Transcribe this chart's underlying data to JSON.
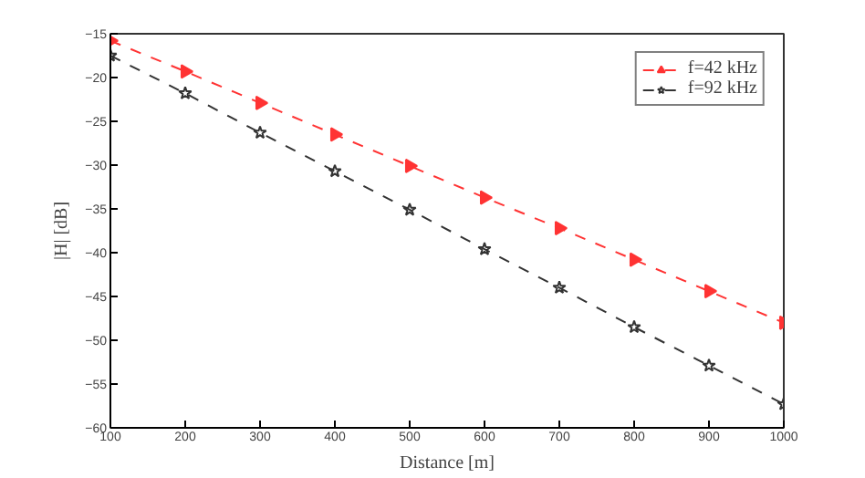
{
  "chart_data": {
    "type": "line",
    "xlabel": "Distance [m]",
    "ylabel": "|H| [dB]",
    "x": [
      100,
      200,
      300,
      400,
      500,
      600,
      700,
      800,
      900,
      1000
    ],
    "series": [
      {
        "name": "f=42 kHz",
        "color": "#ff3333",
        "marker": "triangle",
        "values": [
          -15.8,
          -19.3,
          -22.9,
          -26.5,
          -30.1,
          -33.7,
          -37.2,
          -40.8,
          -44.4,
          -48.0
        ]
      },
      {
        "name": "f=92 kHz",
        "color": "#333333",
        "marker": "star",
        "values": [
          -17.5,
          -21.8,
          -26.3,
          -30.7,
          -35.1,
          -39.6,
          -44.0,
          -48.5,
          -52.9,
          -57.3
        ]
      }
    ],
    "xlim": [
      100,
      1000
    ],
    "ylim": [
      -60,
      -15
    ],
    "xticks": [
      100,
      200,
      300,
      400,
      500,
      600,
      700,
      800,
      900,
      1000
    ],
    "yticks": [
      -60,
      -55,
      -50,
      -45,
      -40,
      -35,
      -30,
      -25,
      -20,
      -15
    ],
    "line_style": "dashed",
    "legend": "top right",
    "grid": false
  }
}
